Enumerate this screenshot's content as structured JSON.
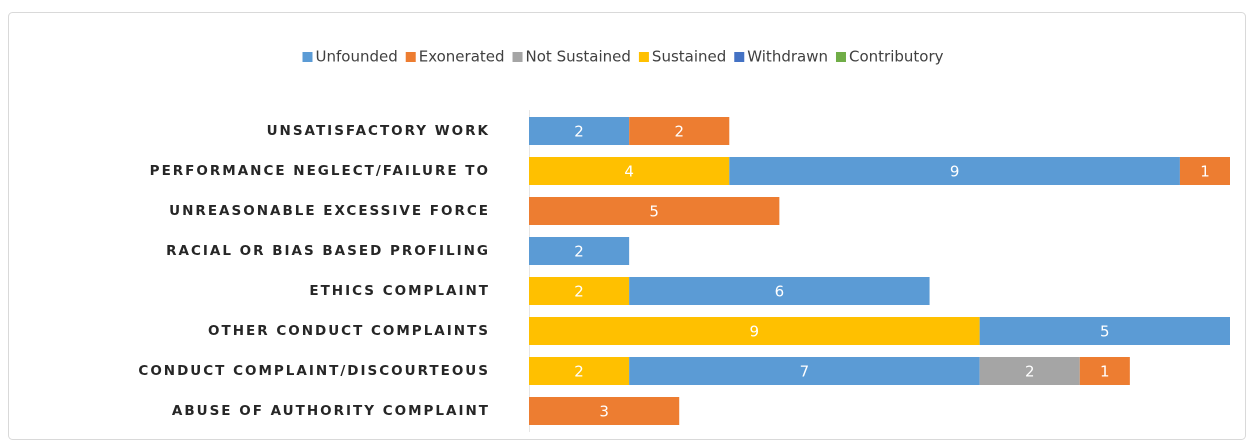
{
  "chart_data": {
    "type": "stacked_barh",
    "categories": [
      "UNSATISFACTORY WORK",
      "PERFORMANCE NEGLECT/FAILURE TO",
      "UNREASONABLE EXCESSIVE FORCE",
      "RACIAL OR BIAS BASED PROFILING",
      "ETHICS COMPLAINT",
      "OTHER CONDUCT COMPLAINTS",
      "CONDUCT COMPLAINT/DISCOURTEOUS",
      "ABUSE OF AUTHORITY COMPLAINT"
    ],
    "series": [
      {
        "name": "Unfounded",
        "color": "#5b9bd5",
        "values": [
          2,
          9,
          null,
          2,
          6,
          5,
          7,
          null
        ]
      },
      {
        "name": "Exonerated",
        "color": "#ed7d31",
        "values": [
          2,
          1,
          5,
          null,
          null,
          null,
          1,
          3
        ]
      },
      {
        "name": "Not Sustained",
        "color": "#a5a5a5",
        "values": [
          null,
          null,
          null,
          null,
          null,
          null,
          2,
          null
        ]
      },
      {
        "name": "Sustained",
        "color": "#ffc000",
        "values": [
          null,
          4,
          null,
          null,
          2,
          9,
          2,
          null
        ]
      },
      {
        "name": "Withdrawn",
        "color": "#4472c4",
        "values": [
          null,
          null,
          null,
          null,
          null,
          null,
          null,
          null
        ]
      },
      {
        "name": "Contributory",
        "color": "#70ad47",
        "values": [
          null,
          null,
          null,
          null,
          null,
          null,
          null,
          null
        ]
      }
    ],
    "stack_order": [
      3,
      0,
      2,
      1,
      4,
      5
    ],
    "xlim": [
      0,
      14
    ],
    "legend": "top"
  }
}
